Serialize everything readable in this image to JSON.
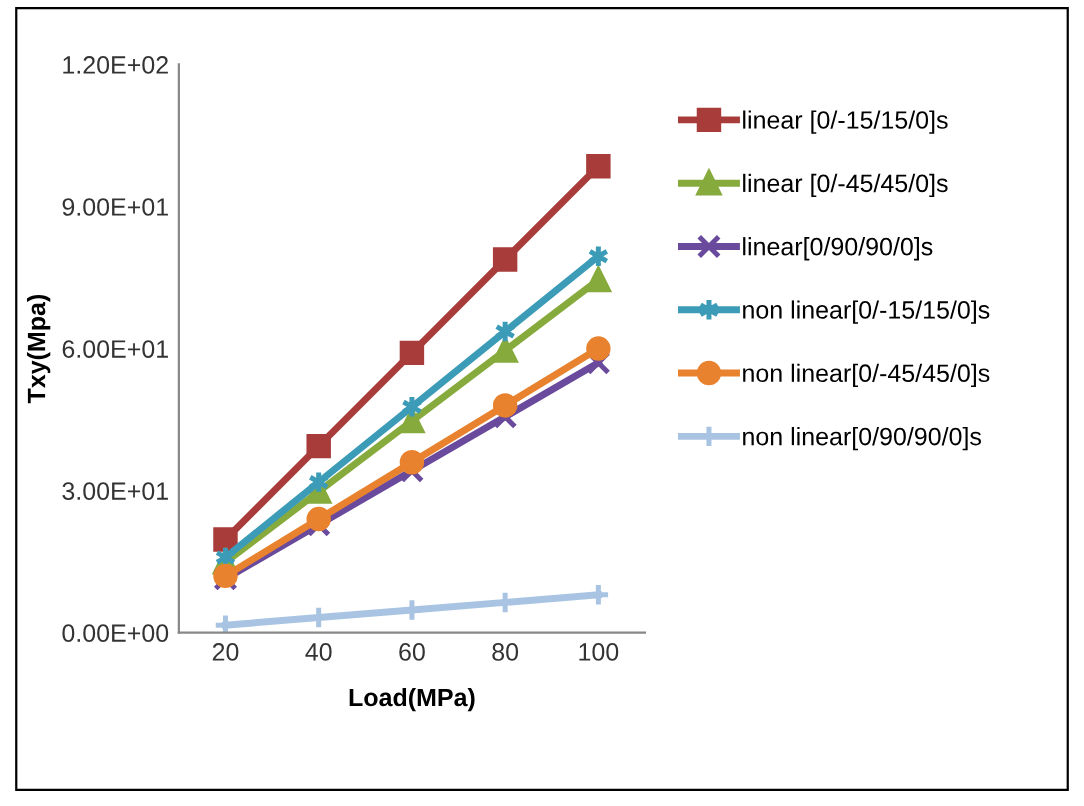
{
  "chart_data": {
    "type": "line",
    "xlabel": "Load(MPa)",
    "ylabel": "Txy(Mpa)",
    "categories": [
      "20",
      "40",
      "60",
      "80",
      "100"
    ],
    "series": [
      {
        "name": "linear [0/-15/15/0]s",
        "color": "#a83c3a",
        "marker": "square",
        "values": [
          19.7,
          39.4,
          59.1,
          78.8,
          98.5
        ]
      },
      {
        "name": "linear [0/-45/45/0]s",
        "color": "#86aa3c",
        "marker": "triangle",
        "values": [
          14.9,
          29.8,
          44.7,
          59.6,
          74.5
        ]
      },
      {
        "name": "linear[0/90/90/0]s",
        "color": "#6a4a9c",
        "marker": "cross",
        "values": [
          11.4,
          22.8,
          34.2,
          45.6,
          57
        ]
      },
      {
        "name": "non linear[0/-15/15/0]s",
        "color": "#3c9cb8",
        "marker": "cross",
        "values": [
          15.9,
          31.8,
          47.7,
          63.6,
          79.5
        ]
      },
      {
        "name": "non linear[0/-45/45/0]s",
        "color": "#e8822e",
        "marker": "circle",
        "values": [
          12,
          24,
          36,
          48,
          60
        ]
      },
      {
        "name": "non linear[0/90/90/0]s",
        "color": "#a9c4e2",
        "marker": "cross",
        "values": [
          1.6,
          3.2,
          4.8,
          6.4,
          8
        ]
      }
    ],
    "ylim": [
      0,
      120
    ],
    "yticks": [
      {
        "value": 0,
        "label": "0.00E+00"
      },
      {
        "value": 30,
        "label": "3.00E+01"
      },
      {
        "value": 60,
        "label": "6.00E+01"
      },
      {
        "value": 90,
        "label": "9.00E+01"
      },
      {
        "value": 120,
        "label": "1.20E+02"
      }
    ],
    "legend": "right",
    "grid": false
  }
}
